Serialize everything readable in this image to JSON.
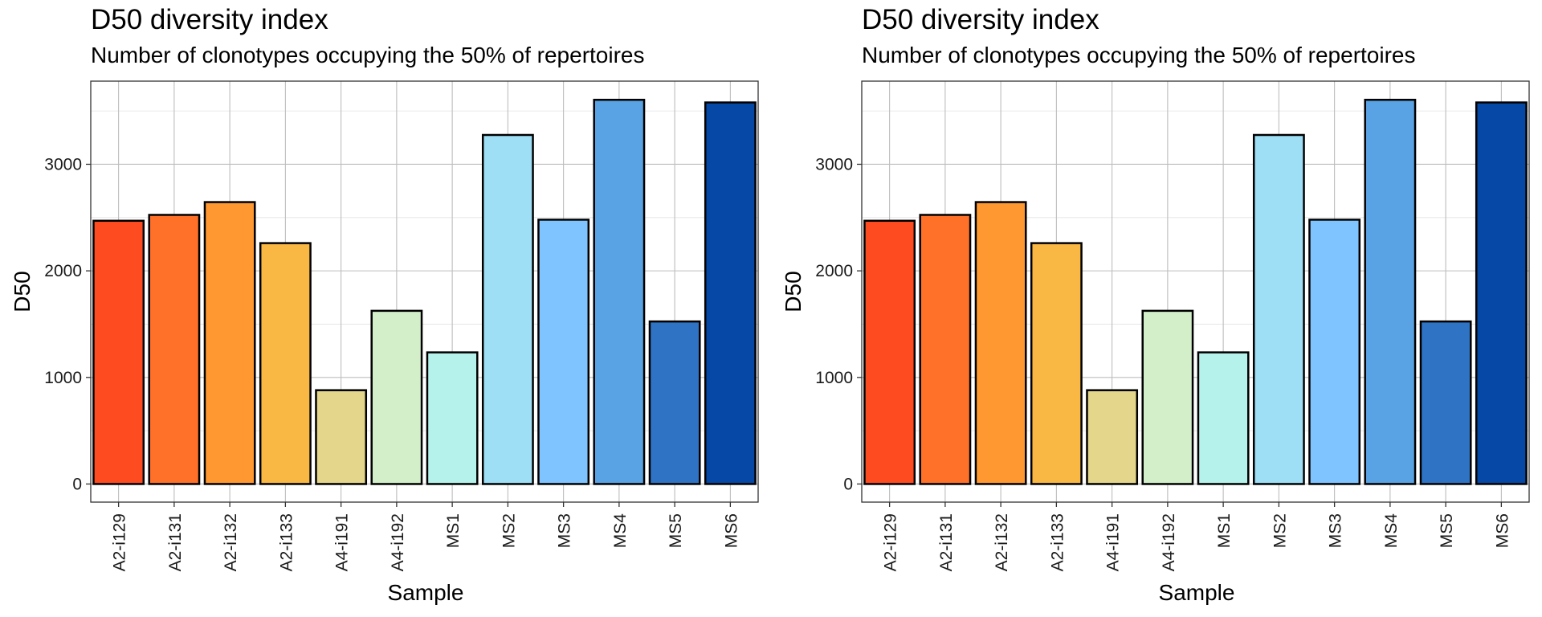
{
  "chart_data": [
    {
      "type": "bar",
      "title": "D50 diversity index",
      "subtitle": "Number of clonotypes occupying the 50% of repertoires",
      "xlabel": "Sample",
      "ylabel": "D50",
      "categories": [
        "A2-i129",
        "A2-i131",
        "A2-i132",
        "A2-i133",
        "A4-i191",
        "A4-i192",
        "MS1",
        "MS2",
        "MS3",
        "MS4",
        "MS5",
        "MS6"
      ],
      "values": [
        2470,
        2525,
        2645,
        2260,
        880,
        1625,
        1235,
        3275,
        2480,
        3605,
        1525,
        3580
      ],
      "colors": [
        "#FF4B20",
        "#FF7029",
        "#FF9831",
        "#F9B843",
        "#E4D68A",
        "#D2EFCA",
        "#B6F2EC",
        "#9EDFF6",
        "#7FC4FE",
        "#59A2E3",
        "#2E73C4",
        "#0548A5"
      ],
      "ylim": [
        -170,
        3780
      ],
      "yticks": [
        0,
        1000,
        2000,
        3000
      ],
      "grid": true,
      "legend": "none"
    },
    {
      "type": "bar",
      "title": "D50 diversity index",
      "subtitle": "Number of clonotypes occupying the 50% of repertoires",
      "xlabel": "Sample",
      "ylabel": "D50",
      "categories": [
        "A2-i129",
        "A2-i131",
        "A2-i132",
        "A2-i133",
        "A4-i191",
        "A4-i192",
        "MS1",
        "MS2",
        "MS3",
        "MS4",
        "MS5",
        "MS6"
      ],
      "values": [
        2470,
        2525,
        2645,
        2260,
        880,
        1625,
        1235,
        3275,
        2480,
        3605,
        1525,
        3580
      ],
      "colors": [
        "#FF4B20",
        "#FF7029",
        "#FF9831",
        "#F9B843",
        "#E4D68A",
        "#D2EFCA",
        "#B6F2EC",
        "#9EDFF6",
        "#7FC4FE",
        "#59A2E3",
        "#2E73C4",
        "#0548A5"
      ],
      "ylim": [
        -170,
        3780
      ],
      "yticks": [
        0,
        1000,
        2000,
        3000
      ],
      "grid": true,
      "legend": "none"
    }
  ]
}
